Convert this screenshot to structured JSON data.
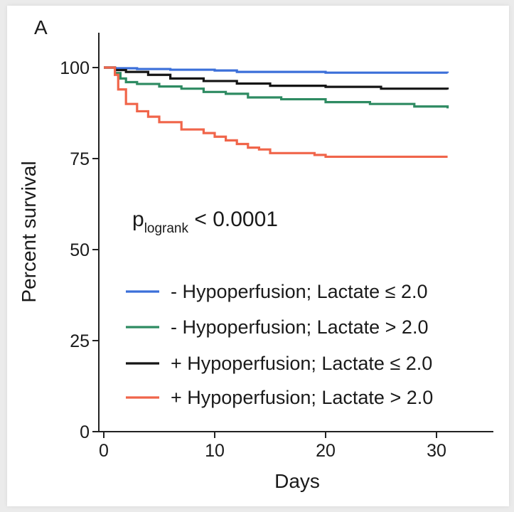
{
  "chart_data": {
    "type": "line",
    "panel_label": "A",
    "title": "",
    "xlabel": "Days",
    "ylabel": "Percent survival",
    "xlim": [
      0,
      34
    ],
    "ylim": [
      0,
      110
    ],
    "xticks": [
      0,
      10,
      20,
      30
    ],
    "yticks": [
      0,
      25,
      50,
      75,
      100
    ],
    "grid": false,
    "annotation": {
      "main": "p",
      "subscript": "logrank",
      "rest": " < 0.0001"
    },
    "legend_position": "bottom-right",
    "series": [
      {
        "name": "- Hypoperfusion; Lactate ≤ 2.0",
        "color": "#3b6fd9",
        "x": [
          0,
          1,
          3,
          6,
          10,
          12,
          20,
          31
        ],
        "y": [
          100,
          99.8,
          99.6,
          99.4,
          99.2,
          98.8,
          98.6,
          98.5
        ]
      },
      {
        "name": "- Hypoperfusion; Lactate > 2.0",
        "color": "#2e8b62",
        "x": [
          0,
          1,
          1.5,
          2,
          3,
          5,
          7,
          9,
          11,
          13,
          16,
          20,
          24,
          28,
          31
        ],
        "y": [
          100,
          98.5,
          97,
          96,
          95.5,
          94.8,
          94.2,
          93.3,
          92.8,
          91.8,
          91.3,
          90.5,
          90,
          89.3,
          88.8
        ]
      },
      {
        "name": "+ Hypoperfusion; Lactate ≤ 2.0",
        "color": "#151515",
        "x": [
          0,
          1,
          2,
          4,
          6,
          9,
          12,
          15,
          20,
          25,
          31
        ],
        "y": [
          100,
          99.3,
          98.8,
          98,
          97,
          96.3,
          95.6,
          95,
          94.7,
          94.2,
          94
        ]
      },
      {
        "name": "+ Hypoperfusion; Lactate > 2.0",
        "color": "#f0654a",
        "x": [
          0,
          1,
          1.3,
          2,
          3,
          4,
          5,
          7,
          9,
          10,
          11,
          12,
          13,
          14,
          15,
          17,
          19,
          20,
          31
        ],
        "y": [
          100,
          98,
          94,
          90,
          88,
          86.5,
          85,
          83,
          82,
          81,
          80,
          79,
          78,
          77.5,
          76.5,
          76.5,
          76,
          75.5,
          75.5
        ]
      }
    ]
  }
}
